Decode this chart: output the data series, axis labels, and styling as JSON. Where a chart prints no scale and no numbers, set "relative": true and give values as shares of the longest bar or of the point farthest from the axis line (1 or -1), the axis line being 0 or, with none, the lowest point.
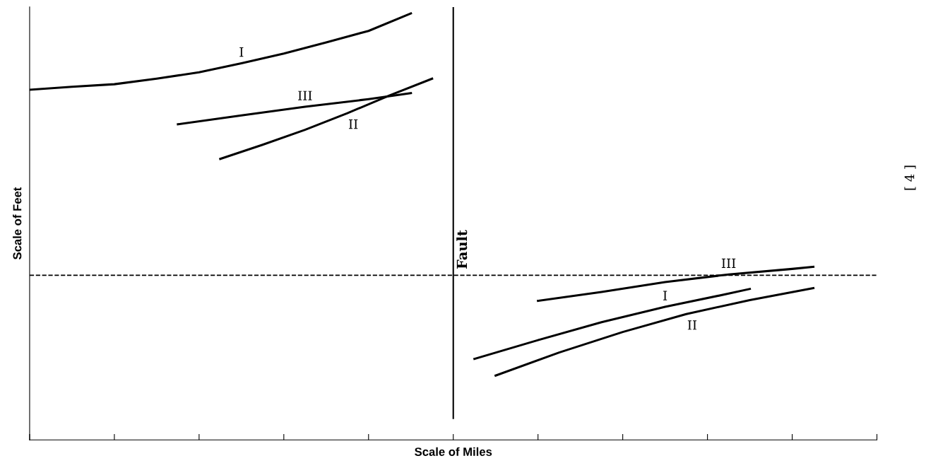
{
  "chart_data": {
    "type": "line",
    "relative": true,
    "xlabel": "Scale of Miles",
    "ylabel": "Scale of Feet",
    "categories": [
      null,
      null,
      null,
      null,
      null,
      null,
      null,
      null,
      null,
      null,
      null,
      null,
      null,
      null,
      null,
      null,
      null,
      null,
      null,
      null,
      null,
      null,
      null,
      null,
      null,
      null,
      null,
      null,
      null,
      null,
      null,
      null,
      null,
      null,
      null,
      null,
      null,
      null,
      null,
      null,
      null
    ],
    "series": [
      {
        "name": "I",
        "color": "#000000",
        "values": [
          0.821,
          null,
          0.828,
          null,
          0.834,
          null,
          0.847,
          null,
          0.862,
          null,
          0.883,
          null,
          0.906,
          null,
          0.932,
          null,
          0.959,
          null,
          1.0,
          null,
          null,
          null,
          null,
          null,
          null,
          null,
          null,
          null,
          null,
          null,
          null,
          null,
          null,
          null,
          null,
          null,
          null,
          null,
          null,
          null,
          null
        ]
      },
      {
        "name": "III",
        "color": "#000000",
        "values": [
          null,
          null,
          null,
          null,
          null,
          null,
          null,
          0.74,
          null,
          null,
          0.761,
          null,
          null,
          0.781,
          null,
          null,
          0.799,
          null,
          0.813,
          null,
          null,
          null,
          null,
          null,
          null,
          null,
          null,
          null,
          null,
          null,
          null,
          null,
          null,
          null,
          null,
          null,
          null,
          null,
          null,
          null,
          null
        ]
      },
      {
        "name": "II",
        "color": "#000000",
        "values": [
          null,
          null,
          null,
          null,
          null,
          null,
          null,
          null,
          null,
          0.659,
          null,
          0.692,
          null,
          0.727,
          null,
          0.766,
          null,
          0.808,
          null,
          0.847,
          null,
          null,
          null,
          null,
          null,
          null,
          null,
          null,
          null,
          null,
          null,
          null,
          null,
          null,
          null,
          null,
          null,
          null,
          null,
          null,
          null
        ]
      },
      {
        "name": "III",
        "color": "#000000",
        "values": [
          null,
          null,
          null,
          null,
          null,
          null,
          null,
          null,
          null,
          null,
          null,
          null,
          null,
          null,
          null,
          null,
          null,
          null,
          null,
          null,
          null,
          null,
          null,
          null,
          0.326,
          null,
          null,
          0.347,
          null,
          null,
          0.37,
          null,
          null,
          0.388,
          null,
          null,
          0.401,
          0.406,
          null,
          null,
          null
        ]
      },
      {
        "name": "I",
        "color": "#000000",
        "values": [
          null,
          null,
          null,
          null,
          null,
          null,
          null,
          null,
          null,
          null,
          null,
          null,
          null,
          null,
          null,
          null,
          null,
          null,
          null,
          null,
          null,
          0.19,
          null,
          null,
          0.234,
          null,
          null,
          0.276,
          null,
          null,
          0.312,
          null,
          null,
          0.343,
          0.354,
          null,
          null,
          null,
          null,
          null,
          null
        ]
      },
      {
        "name": "II",
        "color": "#000000",
        "values": [
          null,
          null,
          null,
          null,
          null,
          null,
          null,
          null,
          null,
          null,
          null,
          null,
          null,
          null,
          null,
          null,
          null,
          null,
          null,
          null,
          null,
          null,
          0.151,
          null,
          null,
          0.205,
          null,
          null,
          0.253,
          null,
          null,
          0.295,
          null,
          null,
          0.328,
          null,
          null,
          0.356,
          null,
          null,
          null
        ]
      }
    ],
    "ref_lines": [
      {
        "axis": "y",
        "value": 0.386,
        "color": "#000000",
        "line_style": "dashed"
      }
    ],
    "annotations": [
      "Fault",
      "[ 4 ]"
    ],
    "grid": false,
    "marker": "none",
    "line_style": "solid"
  }
}
